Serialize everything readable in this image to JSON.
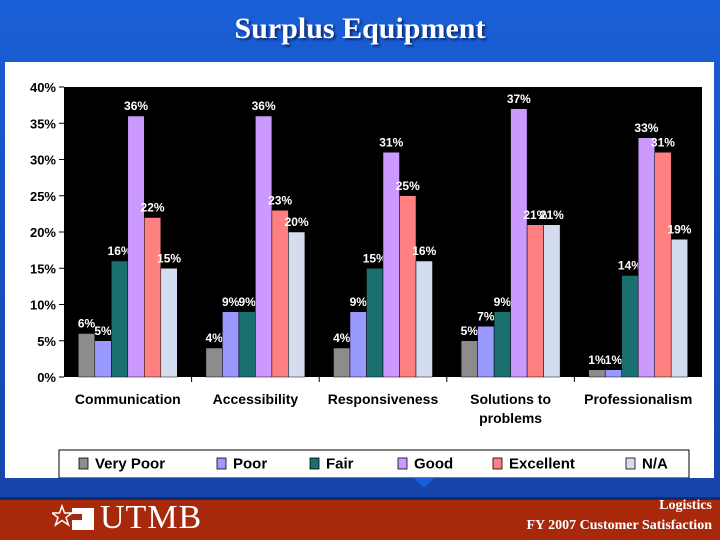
{
  "slide": {
    "title": "Surplus Equipment"
  },
  "footer": {
    "logo_text": "UTMB",
    "line1": "Logistics",
    "line2": "FY 2007 Customer Satisfaction"
  },
  "chart_data": {
    "type": "bar",
    "categories": [
      "Communication",
      "Accessibility",
      "Responsiveness",
      "Solutions to problems",
      "Professionalism"
    ],
    "category_lines": [
      [
        "Communication"
      ],
      [
        "Accessibility"
      ],
      [
        "Responsiveness"
      ],
      [
        "Solutions to",
        "problems"
      ],
      [
        "Professionalism"
      ]
    ],
    "series": [
      {
        "name": "Very Poor",
        "color": "#8c8c8c",
        "values": [
          6,
          4,
          4,
          5,
          1
        ],
        "labels": [
          "6%",
          "4%",
          "4%",
          "5%",
          "1%"
        ]
      },
      {
        "name": "Poor",
        "color": "#9999ff",
        "values": [
          5,
          9,
          9,
          7,
          1
        ],
        "labels": [
          "5%",
          "9%",
          "9%",
          "7%",
          "1%"
        ]
      },
      {
        "name": "Fair",
        "color": "#1a6f6f",
        "values": [
          16,
          9,
          15,
          9,
          14
        ],
        "labels": [
          "16%",
          "9%",
          "15%",
          "9%",
          "14%"
        ]
      },
      {
        "name": "Good",
        "color": "#cc99ff",
        "values": [
          36,
          36,
          31,
          37,
          33
        ],
        "labels": [
          "36%",
          "36%",
          "31%",
          "37%",
          "33%"
        ]
      },
      {
        "name": "Excellent",
        "color": "#ff8080",
        "values": [
          22,
          23,
          25,
          21,
          31
        ],
        "labels": [
          "22%",
          "23%",
          "25%",
          "21%",
          "31%"
        ]
      },
      {
        "name": "N/A",
        "color": "#d4dcf0",
        "values": [
          15,
          20,
          16,
          21,
          19
        ],
        "labels": [
          "15%",
          "20%",
          "16%",
          "21%",
          "19%"
        ]
      }
    ],
    "y_ticks": [
      "0%",
      "5%",
      "10%",
      "15%",
      "20%",
      "25%",
      "30%",
      "35%",
      "40%"
    ],
    "ylim": [
      0,
      40
    ],
    "plot_background": "#000000",
    "grid": false,
    "legend_position": "bottom"
  }
}
